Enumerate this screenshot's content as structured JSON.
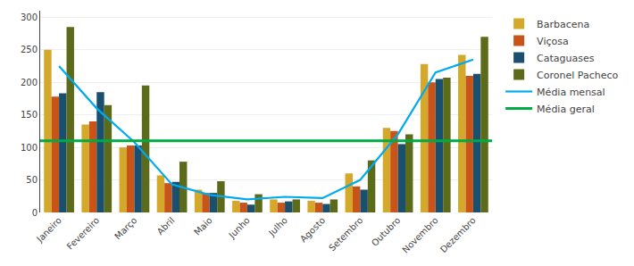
{
  "chart_data": {
    "type": "bar",
    "categories": [
      "Janeiro",
      "Fevereiro",
      "Março",
      "Abril",
      "Maio",
      "Junho",
      "Julho",
      "Agosto",
      "Setembro",
      "Outubro",
      "Novembro",
      "Dezembro"
    ],
    "series": [
      {
        "name": "Barbacena",
        "type": "bar",
        "color": "#D4A82A",
        "values": [
          250,
          135,
          100,
          57,
          35,
          18,
          20,
          18,
          60,
          130,
          228,
          242
        ]
      },
      {
        "name": "Viçosa",
        "type": "bar",
        "color": "#C9541A",
        "values": [
          178,
          140,
          103,
          45,
          30,
          15,
          15,
          15,
          40,
          125,
          200,
          210
        ]
      },
      {
        "name": "Cataguases",
        "type": "bar",
        "color": "#1A4F6E",
        "values": [
          183,
          185,
          103,
          47,
          30,
          12,
          17,
          13,
          35,
          105,
          205,
          213
        ]
      },
      {
        "name": "Coronel Pacheco",
        "type": "bar",
        "color": "#5C6B1A",
        "values": [
          285,
          165,
          195,
          78,
          48,
          28,
          20,
          20,
          80,
          120,
          207,
          270
        ]
      },
      {
        "name": "Média mensal",
        "type": "line",
        "color": "#00AAEE",
        "values": [
          225,
          160,
          108,
          43,
          27,
          20,
          24,
          22,
          50,
          120,
          215,
          235
        ]
      },
      {
        "name": "Média geral",
        "type": "hline",
        "color": "#00AA44",
        "value": 110
      }
    ],
    "ylim": [
      0,
      310
    ],
    "yticks": [
      0,
      50,
      100,
      150,
      200,
      250,
      300
    ],
    "grid": true,
    "legend": "right"
  }
}
